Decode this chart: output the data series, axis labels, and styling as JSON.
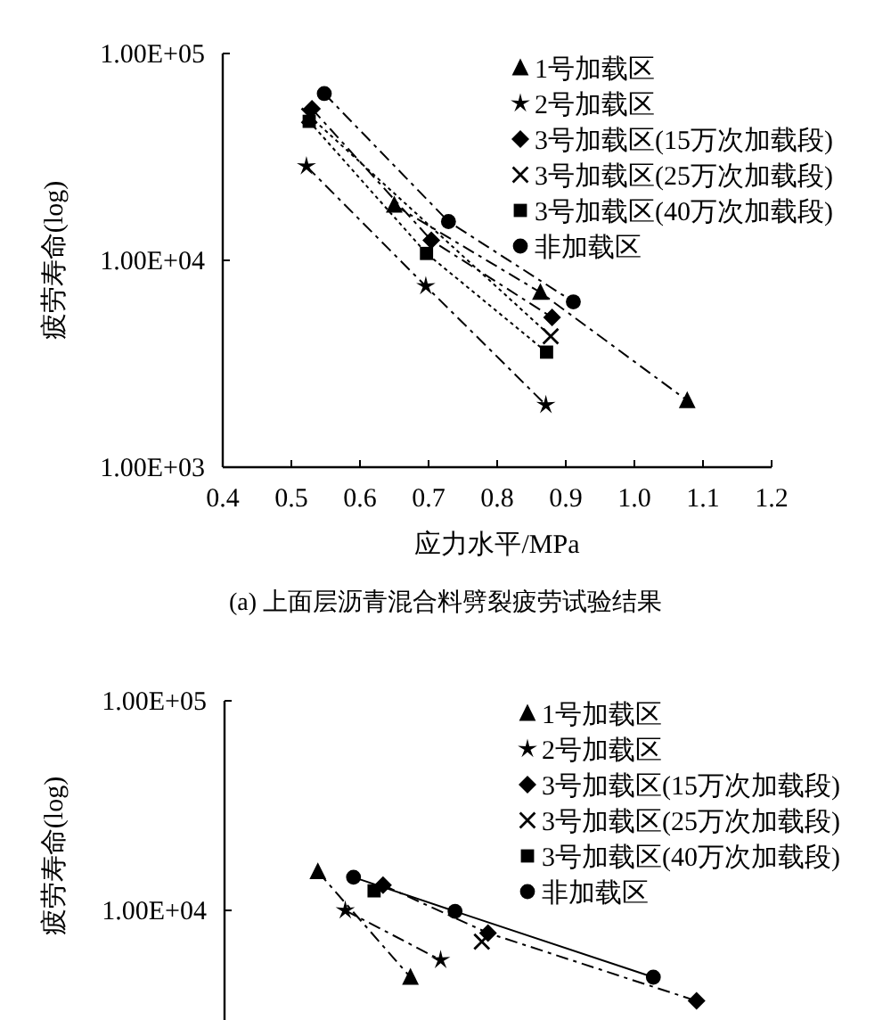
{
  "chart_data": [
    {
      "type": "line",
      "xlabel": "应力水平/MPa",
      "ylabel": "疲劳寿命(log)",
      "annotations": [
        "(a) 上面层沥青混合料劈裂疲劳试验结果"
      ],
      "log": "y",
      "legend": "top right",
      "xlim": [
        0.4,
        1.2
      ],
      "ylim": [
        1000,
        100000
      ],
      "xticks": [
        0.4,
        0.5,
        0.6,
        0.7,
        0.8,
        0.9,
        {
          "value": 1.0,
          "label": "1.0"
        },
        1.1,
        1.2
      ],
      "yticks": [
        {
          "value": 1000,
          "label": "1.00E+03"
        },
        {
          "value": 10000,
          "label": "1.00E+04"
        },
        {
          "value": 100000,
          "label": "1.00E+05"
        }
      ],
      "series": [
        {
          "name": "1号加载区",
          "color": "#000000",
          "marker": "triangle",
          "line_style": "dashed",
          "x": [
            0.65,
            0.863,
            1.077
          ],
          "values": [
            18500,
            7000,
            2100
          ]
        },
        {
          "name": "2号加载区",
          "color": "#000000",
          "marker": "star",
          "line_style": "dashed",
          "x": [
            0.522,
            0.696,
            0.871
          ],
          "values": [
            28500,
            7500,
            2000
          ]
        },
        {
          "name": "3号加载区(15万次加载段)",
          "color": "#000000",
          "marker": "diamond",
          "line_style": "dashed",
          "x": [
            0.53,
            0.704,
            0.88
          ],
          "values": [
            54000,
            12500,
            5300
          ]
        },
        {
          "name": "3号加载区(25万次加载段)",
          "color": "#000000",
          "marker": "cross",
          "line_style": "dotted",
          "x": [
            0.526,
            0.878
          ],
          "values": [
            50000,
            4300
          ]
        },
        {
          "name": "3号加载区(40万次加载段)",
          "color": "#000000",
          "marker": "square",
          "line_style": "dotted",
          "x": [
            0.526,
            0.697,
            0.872
          ],
          "values": [
            47000,
            10800,
            3600
          ]
        },
        {
          "name": "非加载区",
          "color": "#000000",
          "marker": "circle",
          "line_style": "dashed",
          "x": [
            0.548,
            0.729,
            0.911
          ],
          "values": [
            64000,
            15400,
            6300
          ]
        }
      ]
    },
    {
      "type": "line",
      "ylabel": "疲劳寿命(log)",
      "log": "y",
      "legend": "top right",
      "tick_labels": "y",
      "xlim": [
        0.4,
        1.2
      ],
      "ylim": [
        3000,
        100000
      ],
      "yticks": [
        {
          "value": 10000,
          "label": "1.00E+04"
        },
        {
          "value": 100000,
          "label": "1.00E+05"
        }
      ],
      "series": [
        {
          "name": "1号加载区",
          "color": "#000000",
          "marker": "triangle",
          "line_style": "dashed",
          "x": [
            0.536,
            0.671
          ],
          "values": [
            15300,
            4800
          ]
        },
        {
          "name": "2号加载区",
          "color": "#000000",
          "marker": "star",
          "line_style": "dashed",
          "x": [
            0.576,
            0.715
          ],
          "values": [
            10000,
            5800
          ]
        },
        {
          "name": "3号加载区(15万次加载段)",
          "color": "#000000",
          "marker": "diamond",
          "line_style": "dashed",
          "x": [
            0.631,
            0.784,
            1.088
          ],
          "values": [
            13200,
            7800,
            3700
          ]
        },
        {
          "name": "3号加载区(25万次加载段)",
          "color": "#000000",
          "marker": "cross",
          "x": [
            0.775
          ],
          "values": [
            7100
          ]
        },
        {
          "name": "3号加载区(40万次加载段)",
          "color": "#000000",
          "marker": "square",
          "x": [
            0.618
          ],
          "values": [
            12400
          ]
        },
        {
          "name": "非加载区",
          "color": "#000000",
          "marker": "circle",
          "line_style": "solid",
          "x": [
            0.588,
            0.736,
            1.025
          ],
          "values": [
            14400,
            9900,
            4800
          ]
        }
      ]
    }
  ]
}
